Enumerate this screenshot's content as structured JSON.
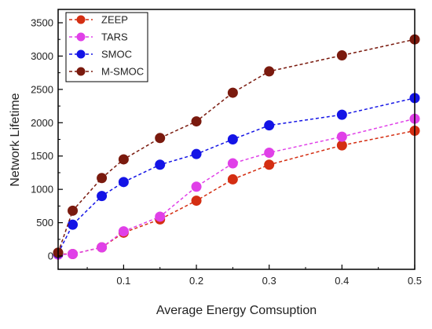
{
  "chart_data": {
    "type": "line",
    "title": "",
    "xlabel": "Average Energy Comsuption",
    "ylabel": "Network Lifetime",
    "xlim": [
      0.01,
      0.5
    ],
    "ylim": [
      -200,
      3700
    ],
    "x_ticks": [
      {
        "value": 0.1,
        "label": "0.1"
      },
      {
        "value": 0.2,
        "label": "0.2"
      },
      {
        "value": 0.3,
        "label": "0.3"
      },
      {
        "value": 0.4,
        "label": "0.4"
      },
      {
        "value": 0.5,
        "label": "0.5"
      }
    ],
    "y_ticks": [
      {
        "value": 0,
        "label": "0"
      },
      {
        "value": 500,
        "label": "500"
      },
      {
        "value": 1000,
        "label": "1000"
      },
      {
        "value": 1500,
        "label": "1500"
      },
      {
        "value": 2000,
        "label": "2000"
      },
      {
        "value": 2500,
        "label": "2500"
      },
      {
        "value": 3000,
        "label": "3000"
      },
      {
        "value": 3500,
        "label": "3500"
      }
    ],
    "grid": false,
    "legend": "top-left",
    "x": [
      0.01,
      0.03,
      0.07,
      0.1,
      0.15,
      0.2,
      0.25,
      0.3,
      0.4,
      0.5
    ],
    "series": [
      {
        "name": "ZEEP",
        "color": "#d42e12",
        "values": [
          30,
          30,
          130,
          350,
          550,
          830,
          1150,
          1370,
          1660,
          1880
        ]
      },
      {
        "name": "TARS",
        "color": "#e040e8",
        "values": [
          20,
          30,
          130,
          370,
          590,
          1040,
          1390,
          1550,
          1790,
          2060
        ]
      },
      {
        "name": "SMOC",
        "color": "#1414e6",
        "values": [
          40,
          470,
          900,
          1110,
          1370,
          1530,
          1750,
          1960,
          2120,
          2370
        ]
      },
      {
        "name": "M-SMOC",
        "color": "#7a1a0e",
        "values": [
          50,
          680,
          1170,
          1450,
          1770,
          2020,
          2450,
          2770,
          3010,
          3250
        ]
      }
    ]
  }
}
